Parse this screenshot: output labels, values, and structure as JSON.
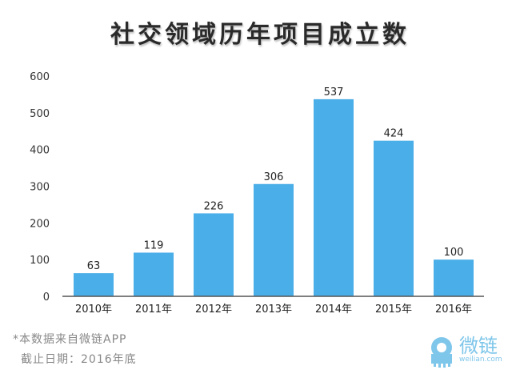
{
  "chart_data": {
    "type": "bar",
    "title": "社交领域历年项目成立数",
    "categories": [
      "2010年",
      "2011年",
      "2012年",
      "2013年",
      "2014年",
      "2015年",
      "2016年"
    ],
    "values": [
      63,
      119,
      226,
      306,
      537,
      424,
      100
    ],
    "ylim": [
      0,
      600
    ],
    "yticks": [
      0,
      100,
      200,
      300,
      400,
      500,
      600
    ],
    "xlabel": "",
    "ylabel": "",
    "grid": false,
    "bar_color": "#4aaee8"
  },
  "footer": {
    "source_note": "*本数据来自微链APP",
    "date_note": "截止日期：2016年底"
  },
  "logo": {
    "name": "微链",
    "url_text": "weilian.com",
    "color": "#7ec6ea"
  }
}
